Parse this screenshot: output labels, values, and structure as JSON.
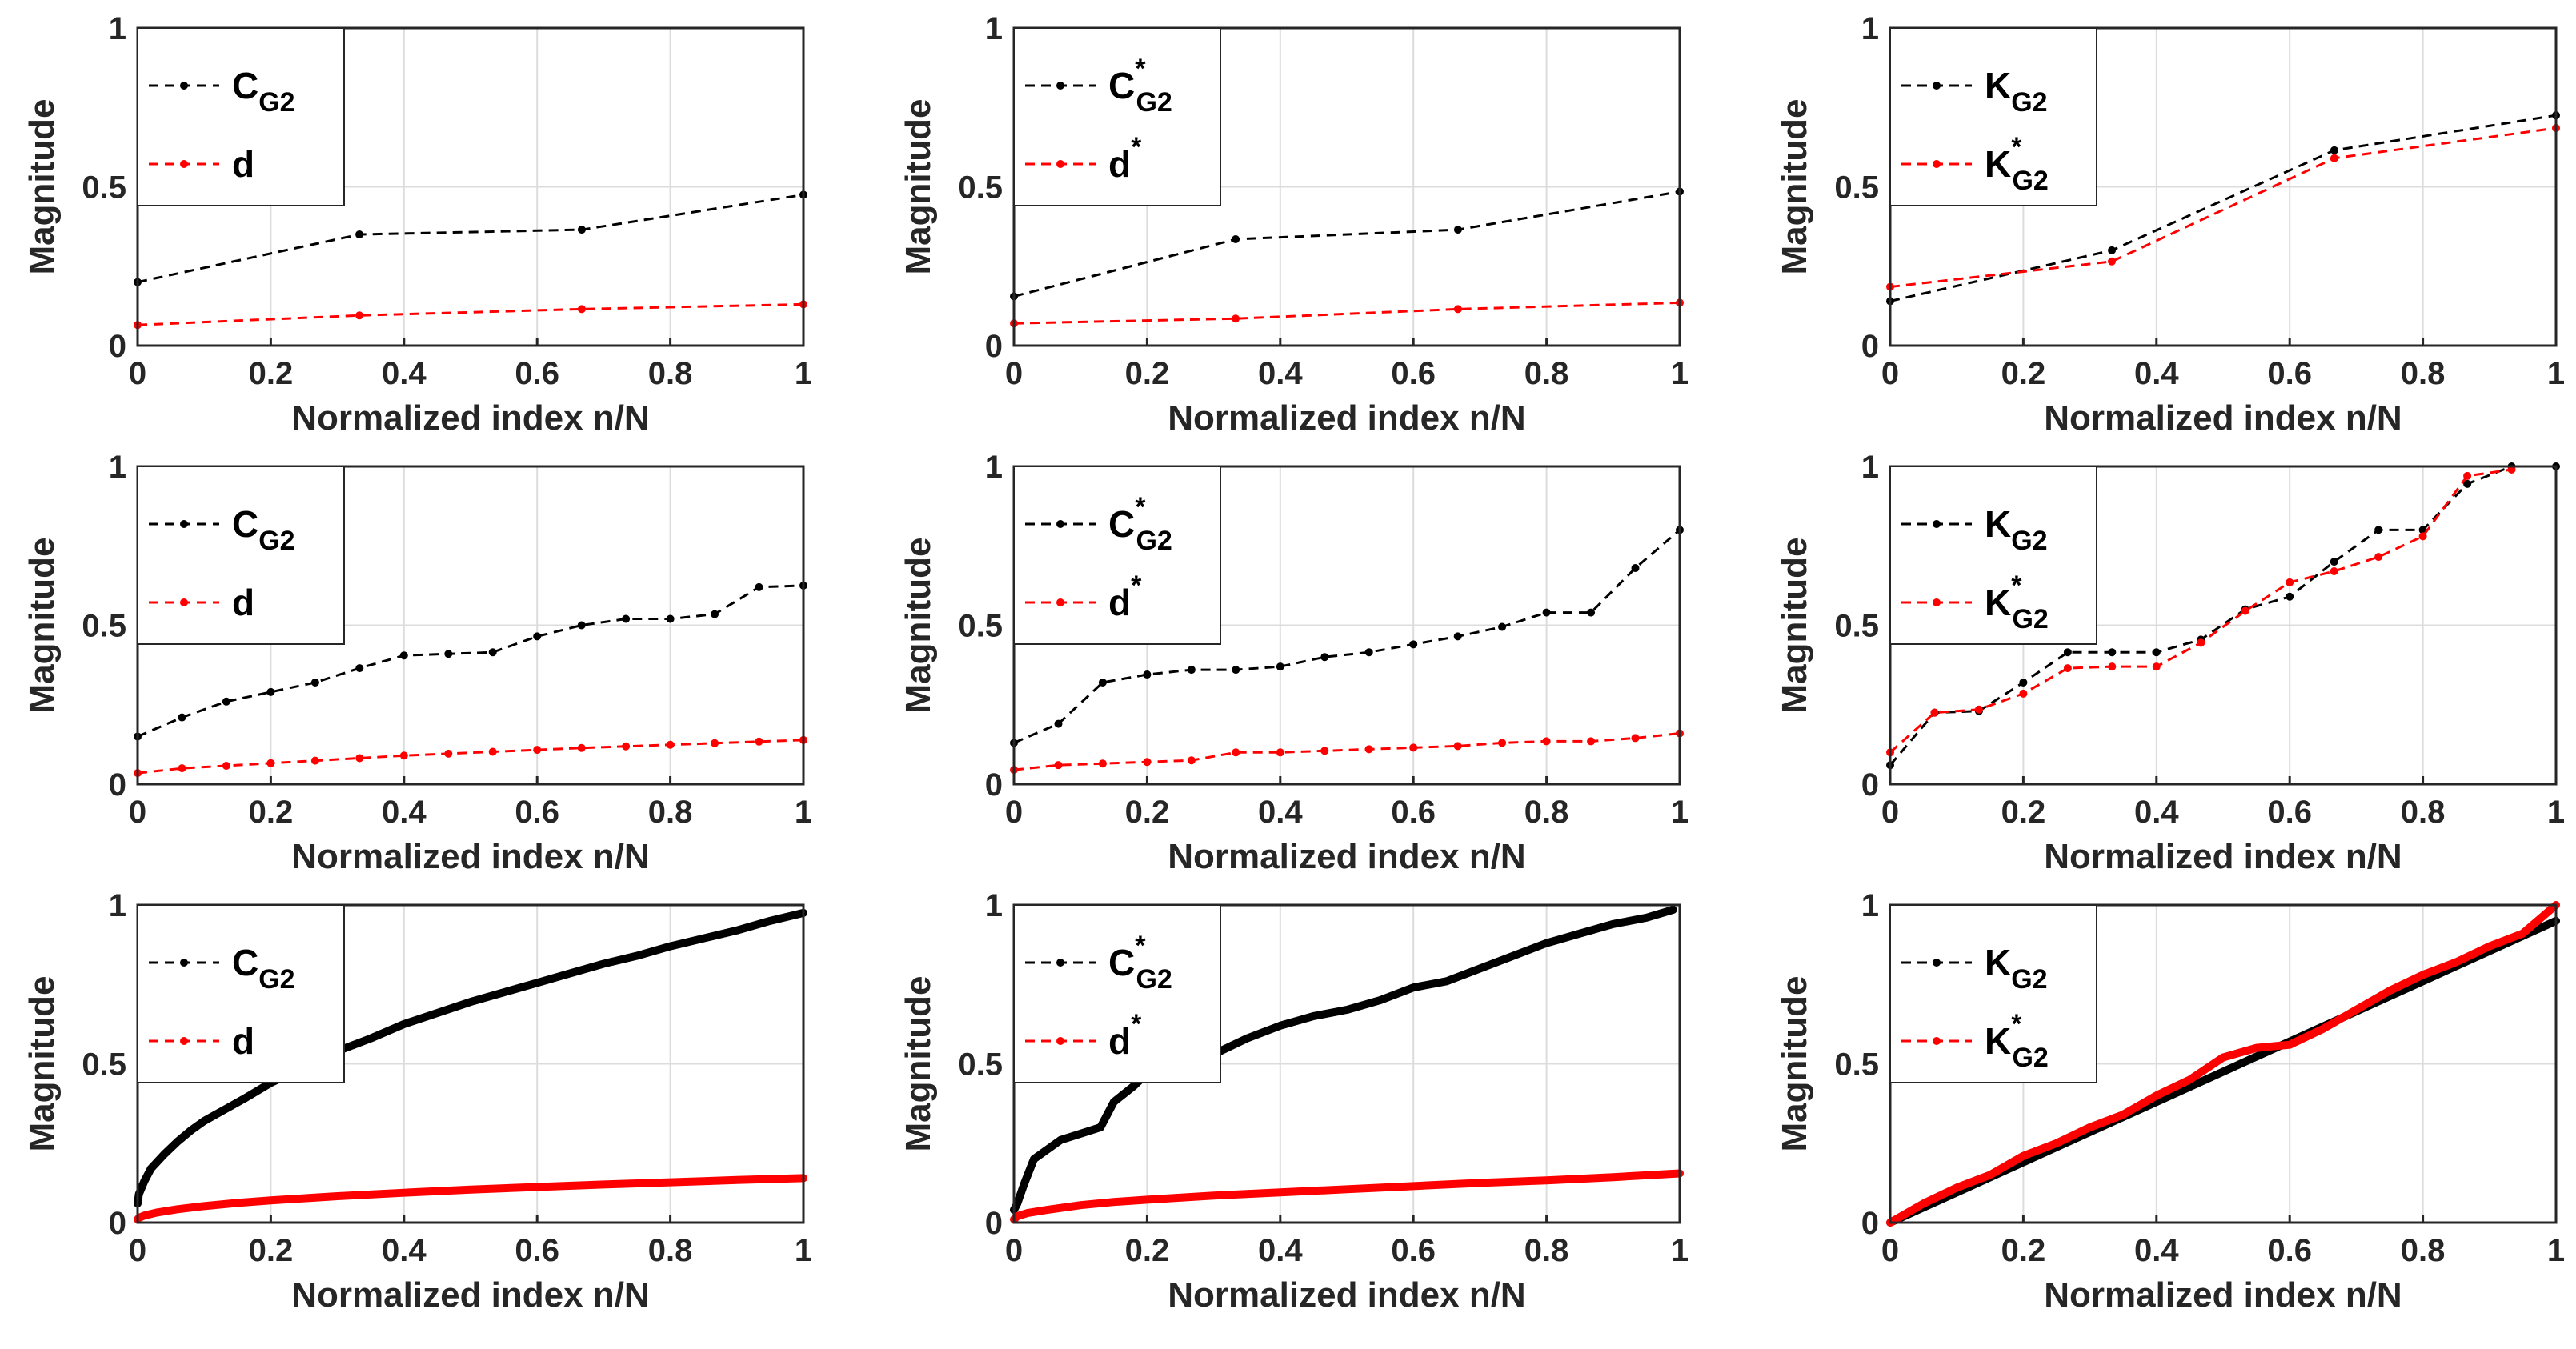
{
  "figure": {
    "rows": 3,
    "cols": 3
  },
  "chart_data": [
    {
      "type": "line",
      "panel": "row1-col1",
      "xlabel": "Normalized index n/N",
      "ylabel": "Magnitude",
      "xlim": [
        0,
        1
      ],
      "ylim": [
        0,
        1
      ],
      "xticks": [
        "0",
        "0.2",
        "0.4",
        "0.6",
        "0.8",
        "1"
      ],
      "yticks": [
        "0",
        "0.5",
        "1"
      ],
      "grid": true,
      "legend_position": "top-left",
      "series": [
        {
          "name": "C_G2",
          "label_main": "C",
          "label_sup": "",
          "label_sub": "G2",
          "color": "#000000",
          "marker": true,
          "x": [
            0,
            0.333,
            0.667,
            1
          ],
          "y": [
            0.2,
            0.35,
            0.365,
            0.475
          ]
        },
        {
          "name": "d",
          "label_main": "d",
          "label_sup": "",
          "label_sub": "",
          "color": "#ff0000",
          "marker": true,
          "x": [
            0,
            0.333,
            0.667,
            1
          ],
          "y": [
            0.065,
            0.095,
            0.115,
            0.13
          ]
        }
      ]
    },
    {
      "type": "line",
      "panel": "row1-col2",
      "xlabel": "Normalized index n/N",
      "ylabel": "Magnitude",
      "xlim": [
        0,
        1
      ],
      "ylim": [
        0,
        1
      ],
      "xticks": [
        "0",
        "0.2",
        "0.4",
        "0.6",
        "0.8",
        "1"
      ],
      "yticks": [
        "0",
        "0.5",
        "1"
      ],
      "grid": true,
      "legend_position": "top-left",
      "series": [
        {
          "name": "C*_G2",
          "label_main": "C",
          "label_sup": "*",
          "label_sub": "G2",
          "color": "#000000",
          "marker": true,
          "x": [
            0,
            0.333,
            0.667,
            1
          ],
          "y": [
            0.155,
            0.335,
            0.365,
            0.485
          ]
        },
        {
          "name": "d*",
          "label_main": "d",
          "label_sup": "*",
          "label_sub": "",
          "color": "#ff0000",
          "marker": true,
          "x": [
            0,
            0.333,
            0.667,
            1
          ],
          "y": [
            0.07,
            0.085,
            0.115,
            0.135
          ]
        }
      ]
    },
    {
      "type": "line",
      "panel": "row1-col3",
      "xlabel": "Normalized index n/N",
      "ylabel": "Magnitude",
      "xlim": [
        0,
        1
      ],
      "ylim": [
        0,
        1
      ],
      "xticks": [
        "0",
        "0.2",
        "0.4",
        "0.6",
        "0.8",
        "1"
      ],
      "yticks": [
        "0",
        "0.5",
        "1"
      ],
      "grid": true,
      "legend_position": "top-left",
      "series": [
        {
          "name": "K_G2",
          "label_main": "K",
          "label_sup": "",
          "label_sub": "G2",
          "color": "#000000",
          "marker": true,
          "x": [
            0,
            0.333,
            0.667,
            1
          ],
          "y": [
            0.14,
            0.3,
            0.615,
            0.725
          ]
        },
        {
          "name": "K*_G2",
          "label_main": "K",
          "label_sup": "*",
          "label_sub": "G2",
          "color": "#ff0000",
          "marker": true,
          "x": [
            0,
            0.333,
            0.667,
            1
          ],
          "y": [
            0.185,
            0.265,
            0.59,
            0.685
          ]
        }
      ]
    },
    {
      "type": "line",
      "panel": "row2-col1",
      "xlabel": "Normalized index n/N",
      "ylabel": "Magnitude",
      "xlim": [
        0,
        1
      ],
      "ylim": [
        0,
        1
      ],
      "xticks": [
        "0",
        "0.2",
        "0.4",
        "0.6",
        "0.8",
        "1"
      ],
      "yticks": [
        "0",
        "0.5",
        "1"
      ],
      "grid": true,
      "legend_position": "top-left",
      "series": [
        {
          "name": "C_G2",
          "label_main": "C",
          "label_sup": "",
          "label_sub": "G2",
          "color": "#000000",
          "marker": true,
          "x": [
            0,
            0.0667,
            0.1333,
            0.2,
            0.2667,
            0.3333,
            0.4,
            0.4667,
            0.5333,
            0.6,
            0.6667,
            0.7333,
            0.8,
            0.8667,
            0.9333,
            1
          ],
          "y": [
            0.15,
            0.21,
            0.26,
            0.29,
            0.32,
            0.365,
            0.405,
            0.41,
            0.415,
            0.465,
            0.5,
            0.52,
            0.52,
            0.535,
            0.62,
            0.625
          ]
        },
        {
          "name": "d",
          "label_main": "d",
          "label_sup": "",
          "label_sub": "",
          "color": "#ff0000",
          "marker": true,
          "x": [
            0,
            0.0667,
            0.1333,
            0.2,
            0.2667,
            0.3333,
            0.4,
            0.4667,
            0.5333,
            0.6,
            0.6667,
            0.7333,
            0.8,
            0.8667,
            0.9333,
            1
          ],
          "y": [
            0.035,
            0.05,
            0.058,
            0.066,
            0.074,
            0.082,
            0.09,
            0.096,
            0.102,
            0.108,
            0.114,
            0.119,
            0.124,
            0.129,
            0.134,
            0.139
          ]
        }
      ]
    },
    {
      "type": "line",
      "panel": "row2-col2",
      "xlabel": "Normalized index n/N",
      "ylabel": "Magnitude",
      "xlim": [
        0,
        1
      ],
      "ylim": [
        0,
        1
      ],
      "xticks": [
        "0",
        "0.2",
        "0.4",
        "0.6",
        "0.8",
        "1"
      ],
      "yticks": [
        "0",
        "0.5",
        "1"
      ],
      "grid": true,
      "legend_position": "top-left",
      "series": [
        {
          "name": "C*_G2",
          "label_main": "C",
          "label_sup": "*",
          "label_sub": "G2",
          "color": "#000000",
          "marker": true,
          "x": [
            0,
            0.0667,
            0.1333,
            0.2,
            0.2667,
            0.3333,
            0.4,
            0.4667,
            0.5333,
            0.6,
            0.6667,
            0.7333,
            0.8,
            0.8667,
            0.9333,
            1
          ],
          "y": [
            0.13,
            0.19,
            0.32,
            0.345,
            0.36,
            0.36,
            0.37,
            0.4,
            0.415,
            0.44,
            0.465,
            0.495,
            0.54,
            0.54,
            0.68,
            0.8
          ]
        },
        {
          "name": "d*",
          "label_main": "d",
          "label_sup": "*",
          "label_sub": "",
          "color": "#ff0000",
          "marker": true,
          "x": [
            0,
            0.0667,
            0.1333,
            0.2,
            0.2667,
            0.3333,
            0.4,
            0.4667,
            0.5333,
            0.6,
            0.6667,
            0.7333,
            0.8,
            0.8667,
            0.9333,
            1
          ],
          "y": [
            0.045,
            0.06,
            0.065,
            0.07,
            0.075,
            0.1,
            0.1,
            0.105,
            0.11,
            0.115,
            0.12,
            0.13,
            0.135,
            0.135,
            0.145,
            0.16
          ]
        }
      ]
    },
    {
      "type": "line",
      "panel": "row2-col3",
      "xlabel": "Normalized index n/N",
      "ylabel": "Magnitude",
      "xlim": [
        0,
        1
      ],
      "ylim": [
        0,
        1
      ],
      "xticks": [
        "0",
        "0.2",
        "0.4",
        "0.6",
        "0.8",
        "1"
      ],
      "yticks": [
        "0",
        "0.5",
        "1"
      ],
      "grid": true,
      "legend_position": "top-left",
      "series": [
        {
          "name": "K_G2",
          "label_main": "K",
          "label_sup": "",
          "label_sub": "G2",
          "color": "#000000",
          "marker": true,
          "x": [
            0,
            0.0667,
            0.1333,
            0.2,
            0.2667,
            0.3333,
            0.4,
            0.4667,
            0.5333,
            0.6,
            0.6667,
            0.7333,
            0.8,
            0.8667,
            0.9333,
            1
          ],
          "y": [
            0.06,
            0.225,
            0.23,
            0.32,
            0.415,
            0.415,
            0.415,
            0.455,
            0.55,
            0.59,
            0.7,
            0.8,
            0.8,
            0.945,
            1.0,
            1.0
          ]
        },
        {
          "name": "K*_G2",
          "label_main": "K",
          "label_sup": "*",
          "label_sub": "G2",
          "color": "#ff0000",
          "marker": true,
          "x": [
            0,
            0.0667,
            0.1333,
            0.2,
            0.2667,
            0.3333,
            0.4,
            0.4667,
            0.5333,
            0.6,
            0.6667,
            0.7333,
            0.8,
            0.8667,
            0.9333
          ],
          "y": [
            0.1,
            0.225,
            0.235,
            0.285,
            0.365,
            0.37,
            0.37,
            0.445,
            0.545,
            0.635,
            0.67,
            0.715,
            0.78,
            0.97,
            0.99
          ]
        }
      ]
    },
    {
      "type": "line",
      "panel": "row3-col1",
      "xlabel": "Normalized index n/N",
      "ylabel": "Magnitude",
      "xlim": [
        0,
        1
      ],
      "ylim": [
        0,
        1
      ],
      "xticks": [
        "0",
        "0.2",
        "0.4",
        "0.6",
        "0.8",
        "1"
      ],
      "yticks": [
        "0",
        "0.5",
        "1"
      ],
      "grid": true,
      "legend_position": "top-left",
      "dense": true,
      "series": [
        {
          "name": "C_G2",
          "label_main": "C",
          "label_sup": "",
          "label_sub": "G2",
          "color": "#000000",
          "marker": true,
          "x": [
            0,
            0.002,
            0.01,
            0.02,
            0.04,
            0.06,
            0.08,
            0.1,
            0.13,
            0.16,
            0.2,
            0.25,
            0.3,
            0.35,
            0.4,
            0.45,
            0.5,
            0.55,
            0.6,
            0.65,
            0.7,
            0.75,
            0.8,
            0.85,
            0.9,
            0.95,
            1
          ],
          "y": [
            0.06,
            0.09,
            0.13,
            0.17,
            0.215,
            0.255,
            0.29,
            0.32,
            0.355,
            0.39,
            0.44,
            0.49,
            0.54,
            0.58,
            0.625,
            0.66,
            0.695,
            0.725,
            0.755,
            0.785,
            0.815,
            0.84,
            0.87,
            0.895,
            0.92,
            0.95,
            0.975
          ]
        },
        {
          "name": "d",
          "label_main": "d",
          "label_sup": "",
          "label_sub": "",
          "color": "#ff0000",
          "marker": true,
          "x": [
            0,
            0.002,
            0.01,
            0.03,
            0.06,
            0.1,
            0.15,
            0.2,
            0.3,
            0.4,
            0.5,
            0.6,
            0.7,
            0.8,
            0.9,
            1
          ],
          "y": [
            0.01,
            0.015,
            0.022,
            0.032,
            0.042,
            0.052,
            0.062,
            0.07,
            0.083,
            0.094,
            0.104,
            0.112,
            0.12,
            0.127,
            0.134,
            0.14
          ]
        }
      ]
    },
    {
      "type": "line",
      "panel": "row3-col2",
      "xlabel": "Normalized index n/N",
      "ylabel": "Magnitude",
      "xlim": [
        0,
        1
      ],
      "ylim": [
        0,
        1
      ],
      "xticks": [
        "0",
        "0.2",
        "0.4",
        "0.6",
        "0.8",
        "1"
      ],
      "yticks": [
        "0",
        "0.5",
        "1"
      ],
      "grid": true,
      "legend_position": "top-left",
      "dense": true,
      "series": [
        {
          "name": "C*_G2",
          "label_main": "C",
          "label_sup": "*",
          "label_sub": "G2",
          "color": "#000000",
          "marker": true,
          "x": [
            0,
            0.005,
            0.015,
            0.03,
            0.05,
            0.07,
            0.1,
            0.13,
            0.15,
            0.18,
            0.2,
            0.25,
            0.3,
            0.35,
            0.4,
            0.45,
            0.5,
            0.55,
            0.6,
            0.65,
            0.7,
            0.75,
            0.8,
            0.85,
            0.9,
            0.95,
            0.99
          ],
          "y": [
            0.04,
            0.06,
            0.12,
            0.2,
            0.23,
            0.26,
            0.28,
            0.3,
            0.38,
            0.43,
            0.47,
            0.5,
            0.53,
            0.58,
            0.62,
            0.65,
            0.67,
            0.7,
            0.74,
            0.76,
            0.8,
            0.84,
            0.88,
            0.91,
            0.94,
            0.96,
            0.985
          ]
        },
        {
          "name": "d*",
          "label_main": "d",
          "label_sup": "*",
          "label_sub": "",
          "color": "#ff0000",
          "marker": true,
          "x": [
            0,
            0.005,
            0.02,
            0.05,
            0.1,
            0.15,
            0.2,
            0.3,
            0.4,
            0.5,
            0.6,
            0.7,
            0.8,
            0.9,
            1
          ],
          "y": [
            0.01,
            0.02,
            0.03,
            0.04,
            0.055,
            0.065,
            0.072,
            0.085,
            0.095,
            0.105,
            0.115,
            0.125,
            0.133,
            0.143,
            0.155
          ]
        }
      ]
    },
    {
      "type": "line",
      "panel": "row3-col3",
      "xlabel": "Normalized index n/N",
      "ylabel": "Magnitude",
      "xlim": [
        0,
        1
      ],
      "ylim": [
        0,
        1
      ],
      "xticks": [
        "0",
        "0.2",
        "0.4",
        "0.6",
        "0.8",
        "1"
      ],
      "yticks": [
        "0",
        "0.5",
        "1"
      ],
      "grid": true,
      "legend_position": "top-left",
      "dense": true,
      "series": [
        {
          "name": "K_G2",
          "label_main": "K",
          "label_sup": "",
          "label_sub": "G2",
          "color": "#000000",
          "marker": true,
          "x": [
            0,
            0.1,
            0.2,
            0.3,
            0.4,
            0.5,
            0.6,
            0.7,
            0.8,
            0.9,
            1
          ],
          "y": [
            0,
            0.095,
            0.19,
            0.285,
            0.38,
            0.475,
            0.57,
            0.665,
            0.76,
            0.855,
            0.95
          ]
        },
        {
          "name": "K*_G2",
          "label_main": "K",
          "label_sup": "*",
          "label_sub": "G2",
          "color": "#ff0000",
          "marker": true,
          "x": [
            0,
            0.05,
            0.1,
            0.15,
            0.2,
            0.25,
            0.3,
            0.35,
            0.4,
            0.45,
            0.5,
            0.55,
            0.6,
            0.65,
            0.7,
            0.75,
            0.8,
            0.85,
            0.9,
            0.95,
            1
          ],
          "y": [
            0,
            0.06,
            0.11,
            0.15,
            0.21,
            0.25,
            0.3,
            0.34,
            0.4,
            0.45,
            0.52,
            0.55,
            0.56,
            0.61,
            0.67,
            0.73,
            0.78,
            0.82,
            0.87,
            0.91,
            1.0
          ]
        }
      ]
    }
  ]
}
